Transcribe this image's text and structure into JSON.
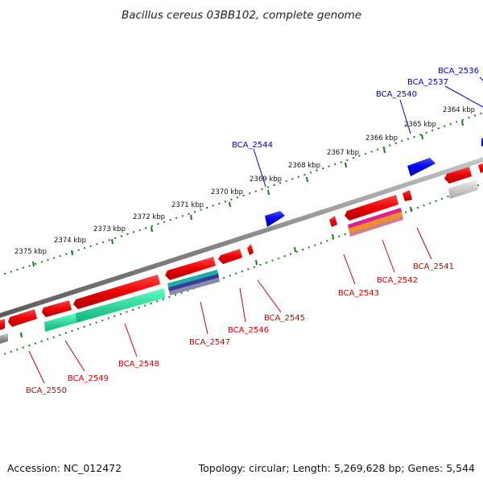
{
  "title": "Bacillus cereus 03BB102, complete genome",
  "footer": {
    "accession": "Accession: NC_012472",
    "summary": "Topology: circular; Length: 5,269,628 bp; Genes: 5,544"
  },
  "ticks": [
    "2364 kbp",
    "2365 kbp",
    "2366 kbp",
    "2367 kbp",
    "2368 kbp",
    "2369 kbp",
    "2370 kbp",
    "2371 kbp",
    "2372 kbp",
    "2373 kbp",
    "2374 kbp",
    "2375 kbp"
  ],
  "labels": {
    "bca2536": "BCA_2536",
    "bca2537": "BCA_2537",
    "bca2540": "BCA_2540",
    "bca2544": "BCA_2544",
    "bca2541": "BCA_2541",
    "bca2542": "BCA_2542",
    "bca2543": "BCA_2543",
    "bca2545": "BCA_2545",
    "bca2546": "BCA_2546",
    "bca2547": "BCA_2547",
    "bca2548": "BCA_2548",
    "bca2549": "BCA_2549",
    "bca2550": "BCA_2550"
  },
  "colors": {
    "forward_gene": "#0000ee",
    "reverse_gene": "#ee0000",
    "backbone": "#888888",
    "tick": "#1a7a1a",
    "label_forward": "#0000bb",
    "label_reverse": "#cc0000"
  }
}
